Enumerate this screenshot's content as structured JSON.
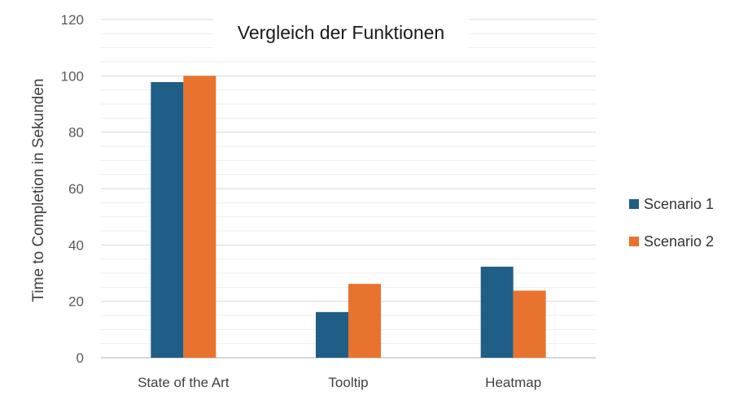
{
  "chart_data": {
    "type": "bar",
    "title": "Vergleich der Funktionen",
    "ylabel": "Time to Completion in Sekunden",
    "xlabel": "",
    "categories": [
      "State of the Art",
      "Tooltip",
      "Heatmap"
    ],
    "ylim": [
      0,
      120
    ],
    "yticks": [
      0,
      20,
      40,
      60,
      80,
      100,
      120
    ],
    "grid": true,
    "legend_position": "right",
    "series": [
      {
        "name": "Scenario 1",
        "color": "#1f5e86",
        "values": [
          97.8,
          16.2,
          32.3
        ]
      },
      {
        "name": "Scenario 2",
        "color": "#e8732f",
        "values": [
          100.0,
          26.2,
          23.8
        ]
      }
    ]
  }
}
